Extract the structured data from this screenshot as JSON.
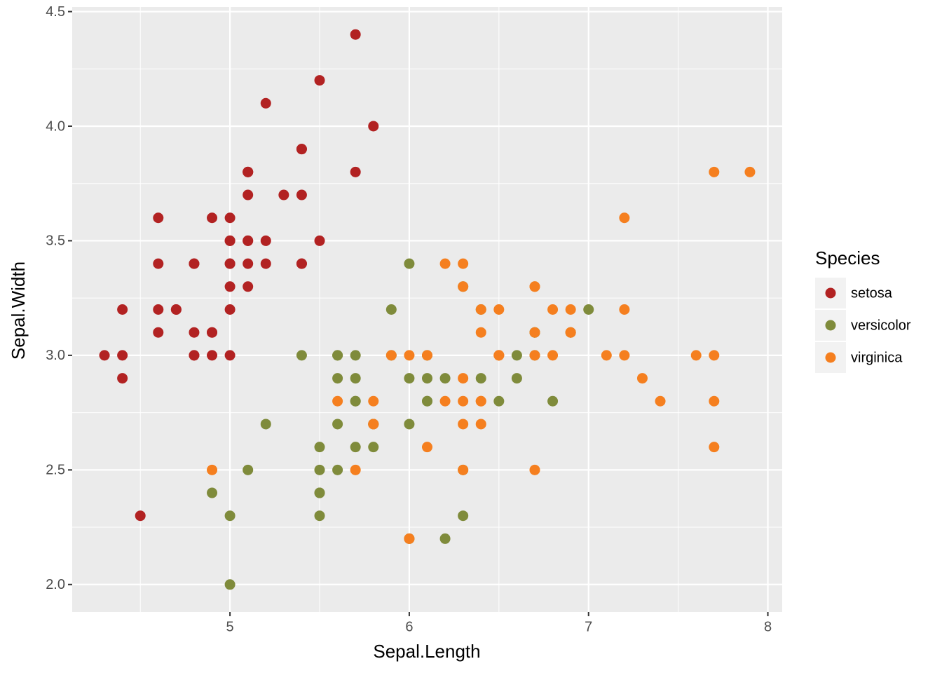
{
  "chart_data": {
    "type": "scatter",
    "x_label": "Sepal.Length",
    "y_label": "Sepal.Width",
    "legend_title": "Species",
    "legend_position": "right",
    "xlim": [
      4.12,
      8.08
    ],
    "xticks": [
      5,
      6,
      7,
      8
    ],
    "ylim": [
      1.88,
      4.52
    ],
    "yticks": [
      {
        "value": 2,
        "label": "2.0"
      },
      2.5,
      {
        "value": 3,
        "label": "3.0"
      },
      3.5,
      {
        "value": 4,
        "label": "4.0"
      },
      4.5
    ],
    "grid": true,
    "minor_grid": true,
    "series": [
      {
        "name": "setosa",
        "color": "#b22222",
        "x": [
          5.1,
          4.9,
          4.7,
          4.6,
          5.0,
          5.4,
          4.6,
          5.0,
          4.4,
          4.9,
          5.4,
          4.8,
          4.8,
          4.3,
          5.8,
          5.7,
          5.4,
          5.1,
          5.7,
          5.1,
          5.4,
          5.1,
          4.6,
          5.1,
          4.8,
          5.0,
          5.0,
          5.2,
          5.2,
          4.7,
          4.8,
          5.4,
          5.2,
          5.5,
          4.9,
          5.0,
          5.5,
          4.9,
          4.4,
          5.1,
          5.0,
          4.5,
          4.4,
          5.0,
          5.1,
          4.8,
          5.1,
          4.6,
          5.3,
          5.0
        ],
        "values": [
          3.5,
          3.0,
          3.2,
          3.1,
          3.6,
          3.9,
          3.4,
          3.4,
          2.9,
          3.1,
          3.7,
          3.4,
          3.0,
          3.0,
          4.0,
          4.4,
          3.9,
          3.5,
          3.8,
          3.8,
          3.4,
          3.7,
          3.6,
          3.3,
          3.4,
          3.0,
          3.4,
          3.5,
          3.4,
          3.2,
          3.1,
          3.4,
          4.1,
          4.2,
          3.1,
          3.2,
          3.5,
          3.6,
          3.0,
          3.4,
          3.5,
          2.3,
          3.2,
          3.5,
          3.8,
          3.0,
          3.8,
          3.2,
          3.7,
          3.3
        ]
      },
      {
        "name": "versicolor",
        "color": "#7f8b3b",
        "x": [
          7.0,
          6.4,
          6.9,
          5.5,
          6.5,
          5.7,
          6.3,
          4.9,
          6.6,
          5.2,
          5.0,
          5.9,
          6.0,
          6.1,
          5.6,
          6.7,
          5.6,
          5.8,
          6.2,
          5.6,
          5.9,
          6.1,
          6.3,
          6.1,
          6.4,
          6.6,
          6.8,
          6.7,
          6.0,
          5.7,
          5.5,
          5.5,
          5.8,
          6.0,
          5.4,
          6.0,
          6.7,
          6.3,
          5.6,
          5.5,
          5.5,
          6.1,
          5.8,
          5.0,
          5.6,
          5.7,
          5.7,
          6.2,
          5.1,
          5.7
        ],
        "values": [
          3.2,
          3.2,
          3.1,
          2.3,
          2.8,
          2.8,
          3.3,
          2.4,
          2.9,
          2.7,
          2.0,
          3.0,
          2.2,
          2.9,
          2.9,
          3.1,
          3.0,
          2.7,
          2.2,
          2.5,
          3.2,
          2.8,
          2.5,
          2.8,
          2.9,
          3.0,
          2.8,
          3.0,
          2.9,
          2.6,
          2.4,
          2.4,
          2.7,
          2.7,
          3.0,
          3.4,
          3.1,
          2.3,
          3.0,
          2.5,
          2.6,
          3.0,
          2.6,
          2.3,
          2.7,
          3.0,
          2.9,
          2.9,
          2.5,
          2.8
        ]
      },
      {
        "name": "virginica",
        "color": "#f57f1f",
        "x": [
          6.3,
          5.8,
          7.1,
          6.3,
          6.5,
          7.6,
          4.9,
          7.3,
          6.7,
          7.2,
          6.5,
          6.4,
          6.8,
          5.7,
          5.8,
          6.4,
          6.5,
          7.7,
          7.7,
          6.0,
          6.9,
          5.6,
          7.7,
          6.3,
          6.7,
          7.2,
          6.2,
          6.1,
          6.4,
          7.2,
          7.4,
          7.9,
          6.4,
          6.3,
          6.1,
          7.7,
          6.3,
          6.4,
          6.0,
          6.9,
          6.7,
          6.9,
          5.8,
          6.8,
          6.7,
          6.7,
          6.3,
          6.5,
          6.2,
          5.9
        ],
        "values": [
          3.3,
          2.7,
          3.0,
          2.9,
          3.0,
          3.0,
          2.5,
          2.9,
          2.5,
          3.6,
          3.2,
          2.7,
          3.0,
          2.5,
          2.8,
          3.2,
          3.0,
          3.8,
          2.6,
          2.2,
          3.2,
          2.8,
          2.8,
          2.7,
          3.3,
          3.2,
          2.8,
          3.0,
          2.8,
          3.0,
          2.8,
          3.8,
          2.8,
          2.8,
          2.6,
          3.0,
          3.4,
          3.1,
          3.0,
          3.1,
          3.1,
          3.1,
          2.7,
          3.2,
          3.3,
          3.0,
          2.5,
          3.0,
          3.4,
          3.0
        ]
      }
    ]
  }
}
